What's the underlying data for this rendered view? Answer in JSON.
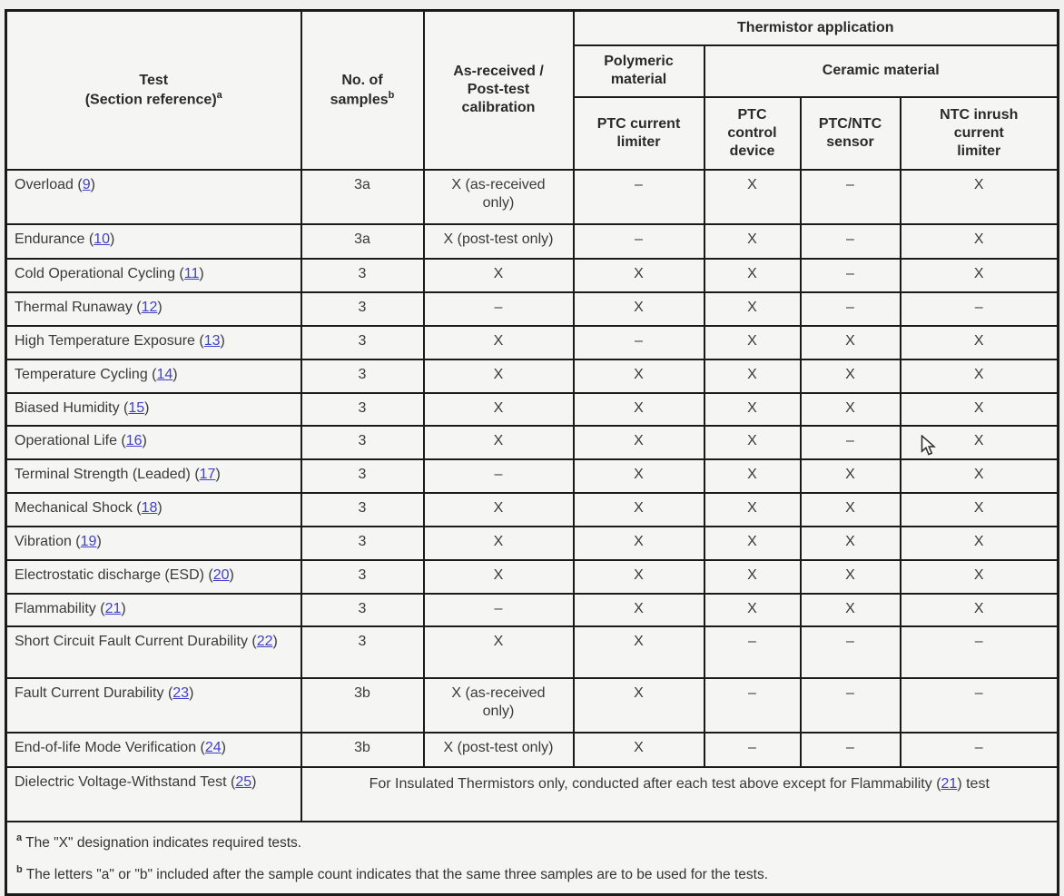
{
  "table": {
    "header": {
      "col_test": "Test\n(Section reference)",
      "col_test_sup": "a",
      "col_samples": "No. of\nsamples",
      "col_samples_sup": "b",
      "col_calibration": "As-received /\nPost-test\ncalibration",
      "thermistor_application": "Thermistor application",
      "polymeric": "Polymeric\nmaterial",
      "ceramic": "Ceramic material",
      "app_columns": [
        "PTC current\nlimiter",
        "PTC\ncontrol\ndevice",
        "PTC/NTC\nsensor",
        "NTC inrush\ncurrent\nlimiter"
      ]
    },
    "rows": [
      {
        "test": "Overload",
        "ref": "9",
        "samples": "3a",
        "calibration": "X (as-received\nonly)",
        "apps": [
          "–",
          "X",
          "–",
          "X"
        ]
      },
      {
        "test": "Endurance",
        "ref": "10",
        "samples": "3a",
        "calibration": "X (post-test only)",
        "apps": [
          "–",
          "X",
          "–",
          "X"
        ]
      },
      {
        "test": "Cold Operational Cycling",
        "ref": "11",
        "samples": "3",
        "calibration": "X",
        "apps": [
          "X",
          "X",
          "–",
          "X"
        ]
      },
      {
        "test": "Thermal Runaway",
        "ref": "12",
        "samples": "3",
        "calibration": "–",
        "apps": [
          "X",
          "X",
          "–",
          "–"
        ]
      },
      {
        "test": "High Temperature Exposure",
        "ref": "13",
        "samples": "3",
        "calibration": "X",
        "apps": [
          "–",
          "X",
          "X",
          "X"
        ]
      },
      {
        "test": "Temperature Cycling",
        "ref": "14",
        "samples": "3",
        "calibration": "X",
        "apps": [
          "X",
          "X",
          "X",
          "X"
        ]
      },
      {
        "test": "Biased Humidity",
        "ref": "15",
        "samples": "3",
        "calibration": "X",
        "apps": [
          "X",
          "X",
          "X",
          "X"
        ]
      },
      {
        "test": "Operational Life",
        "ref": "16",
        "samples": "3",
        "calibration": "X",
        "apps": [
          "X",
          "X",
          "–",
          "X"
        ]
      },
      {
        "test": "Terminal Strength (Leaded)",
        "ref": "17",
        "samples": "3",
        "calibration": "–",
        "apps": [
          "X",
          "X",
          "X",
          "X"
        ]
      },
      {
        "test": "Mechanical Shock",
        "ref": "18",
        "samples": "3",
        "calibration": "X",
        "apps": [
          "X",
          "X",
          "X",
          "X"
        ]
      },
      {
        "test": "Vibration",
        "ref": "19",
        "samples": "3",
        "calibration": "X",
        "apps": [
          "X",
          "X",
          "X",
          "X"
        ]
      },
      {
        "test": "Electrostatic discharge (ESD)",
        "ref": "20",
        "samples": "3",
        "calibration": "X",
        "apps": [
          "X",
          "X",
          "X",
          "X"
        ]
      },
      {
        "test": "Flammability",
        "ref": "21",
        "samples": "3",
        "calibration": "–",
        "apps": [
          "X",
          "X",
          "X",
          "X"
        ]
      },
      {
        "test": "Short Circuit Fault Current Durability",
        "ref": "22",
        "samples": "3",
        "calibration": "X",
        "apps": [
          "X",
          "–",
          "–",
          "–"
        ]
      },
      {
        "test": "Fault Current Durability",
        "ref": "23",
        "samples": "3b",
        "calibration": "X (as-received\nonly)",
        "apps": [
          "X",
          "–",
          "–",
          "–"
        ]
      },
      {
        "test": "End-of-life Mode Verification",
        "ref": "24",
        "samples": "3b",
        "calibration": "X (post-test only)",
        "apps": [
          "X",
          "–",
          "–",
          "–"
        ]
      }
    ],
    "dielectric": {
      "test": "Dielectric Voltage-Withstand Test",
      "ref": "25",
      "note_before": "For Insulated Thermistors only, conducted after each test above except for Flammability (",
      "note_link": "21",
      "note_after": ") test"
    },
    "footnotes": [
      {
        "sup": "a",
        "text": "The \"X\" designation indicates required tests."
      },
      {
        "sup": "b",
        "text": "The letters \"a\" or \"b\" included after the sample count indicates that the same three samples are to be used for the tests."
      }
    ]
  },
  "colors": {
    "link_blue": "#4140cb",
    "border_black": "#1a1a1a",
    "text_dark": "#3a3a3a"
  },
  "icons": {
    "cursor": "arrow-pointer-icon"
  }
}
